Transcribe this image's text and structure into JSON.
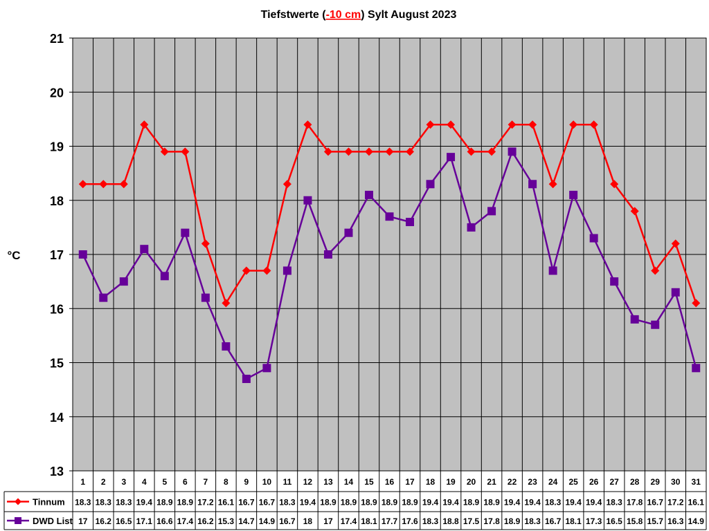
{
  "chart_data": {
    "type": "line",
    "title_parts": [
      "Tiefstwerte (",
      "-10 cm",
      ") Sylt August 2023"
    ],
    "title_highlight_color": "#ff0000",
    "ylabel": "°C",
    "ylim": [
      13,
      21
    ],
    "yticks": [
      13,
      14,
      15,
      16,
      17,
      18,
      19,
      20,
      21
    ],
    "grid": true,
    "plot_background": "#c0c0c0",
    "legend": "data-table-left",
    "categories": [
      "1",
      "2",
      "3",
      "4",
      "5",
      "6",
      "7",
      "8",
      "9",
      "10",
      "11",
      "12",
      "13",
      "14",
      "15",
      "16",
      "17",
      "18",
      "19",
      "20",
      "21",
      "22",
      "23",
      "24",
      "25",
      "26",
      "27",
      "28",
      "29",
      "30",
      "31"
    ],
    "series": [
      {
        "name": "Tinnum",
        "color": "#ff0000",
        "marker": "diamond",
        "values": [
          18.3,
          18.3,
          18.3,
          19.4,
          18.9,
          18.9,
          17.2,
          16.1,
          16.7,
          16.7,
          18.3,
          19.4,
          18.9,
          18.9,
          18.9,
          18.9,
          18.9,
          19.4,
          19.4,
          18.9,
          18.9,
          19.4,
          19.4,
          18.3,
          19.4,
          19.4,
          18.3,
          17.8,
          16.7,
          17.2,
          16.1
        ]
      },
      {
        "name": "DWD List",
        "color": "#660099",
        "marker": "square",
        "values": [
          17,
          16.2,
          16.5,
          17.1,
          16.6,
          17.4,
          16.2,
          15.3,
          14.7,
          14.9,
          16.7,
          18,
          17,
          17.4,
          18.1,
          17.7,
          17.6,
          18.3,
          18.8,
          17.5,
          17.8,
          18.9,
          18.3,
          16.7,
          18.1,
          17.3,
          16.5,
          15.8,
          15.7,
          16.3,
          14.9
        ]
      }
    ]
  }
}
